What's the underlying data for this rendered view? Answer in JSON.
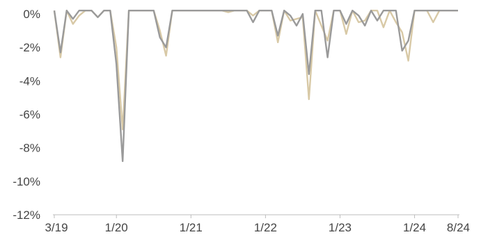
{
  "chart_data": {
    "type": "line",
    "title": "",
    "xlabel": "",
    "ylabel": "",
    "x_tick_labels": [
      "3/19",
      "1/20",
      "1/21",
      "1/22",
      "1/23",
      "1/24",
      "8/24"
    ],
    "x_tick_months": [
      0,
      10,
      22,
      34,
      46,
      58,
      65
    ],
    "y_ticks": [
      0,
      -2,
      -4,
      -6,
      -8,
      -10,
      -12
    ],
    "y_tick_labels": [
      "0%",
      "-2%",
      "-4%",
      "-6%",
      "-8%",
      "-10%",
      "-12%"
    ],
    "ylim": [
      -12,
      0
    ],
    "x_range_months": [
      0,
      65
    ],
    "grid": false,
    "legend": "none",
    "series": [
      {
        "color": "#d8c9a6",
        "points": [
          [
            0,
            0.2
          ],
          [
            1,
            -2.6
          ],
          [
            2,
            0.2
          ],
          [
            3,
            -0.6
          ],
          [
            4,
            -0.1
          ],
          [
            5,
            0.2
          ],
          [
            6,
            0.2
          ],
          [
            7,
            -0.2
          ],
          [
            8,
            0.2
          ],
          [
            9,
            0.2
          ],
          [
            10,
            -2.0
          ],
          [
            11,
            -6.9
          ],
          [
            12,
            0.2
          ],
          [
            13,
            0.2
          ],
          [
            14,
            0.2
          ],
          [
            15,
            0.2
          ],
          [
            16,
            0.2
          ],
          [
            17,
            -1.0
          ],
          [
            18,
            -2.5
          ],
          [
            19,
            0.2
          ],
          [
            20,
            0.2
          ],
          [
            21,
            0.2
          ],
          [
            22,
            0.2
          ],
          [
            23,
            0.2
          ],
          [
            24,
            0.2
          ],
          [
            25,
            0.2
          ],
          [
            26,
            0.2
          ],
          [
            27,
            0.2
          ],
          [
            28,
            0.1
          ],
          [
            29,
            0.2
          ],
          [
            30,
            0.2
          ],
          [
            31,
            0.2
          ],
          [
            32,
            -0.1
          ],
          [
            33,
            0.2
          ],
          [
            34,
            0.2
          ],
          [
            35,
            0.2
          ],
          [
            36,
            -1.7
          ],
          [
            37,
            0.2
          ],
          [
            38,
            -0.4
          ],
          [
            39,
            -0.3
          ],
          [
            40,
            -0.2
          ],
          [
            41,
            -5.1
          ],
          [
            42,
            0.2
          ],
          [
            43,
            -0.7
          ],
          [
            44,
            -1.6
          ],
          [
            45,
            0.2
          ],
          [
            46,
            0.2
          ],
          [
            47,
            -1.2
          ],
          [
            48,
            0.2
          ],
          [
            49,
            -0.5
          ],
          [
            50,
            -0.4
          ],
          [
            51,
            0.2
          ],
          [
            52,
            0.2
          ],
          [
            53,
            -0.8
          ],
          [
            54,
            0.2
          ],
          [
            55,
            -0.5
          ],
          [
            56,
            -1.1
          ],
          [
            57,
            -2.8
          ],
          [
            58,
            0.2
          ],
          [
            59,
            0.2
          ],
          [
            60,
            0.2
          ],
          [
            61,
            -0.5
          ],
          [
            62,
            0.2
          ],
          [
            63,
            0.2
          ],
          [
            64,
            0.2
          ],
          [
            65,
            0.2
          ]
        ]
      },
      {
        "color": "#9a9a9a",
        "points": [
          [
            0,
            0.2
          ],
          [
            1,
            -2.3
          ],
          [
            2,
            0.2
          ],
          [
            3,
            -0.3
          ],
          [
            4,
            0.2
          ],
          [
            5,
            0.2
          ],
          [
            6,
            0.2
          ],
          [
            7,
            -0.2
          ],
          [
            8,
            0.2
          ],
          [
            9,
            0.2
          ],
          [
            10,
            -3.0
          ],
          [
            11,
            -8.8
          ],
          [
            12,
            0.2
          ],
          [
            13,
            0.2
          ],
          [
            14,
            0.2
          ],
          [
            15,
            0.2
          ],
          [
            16,
            0.2
          ],
          [
            17,
            -1.4
          ],
          [
            18,
            -2.0
          ],
          [
            19,
            0.2
          ],
          [
            20,
            0.2
          ],
          [
            21,
            0.2
          ],
          [
            22,
            0.2
          ],
          [
            23,
            0.2
          ],
          [
            24,
            0.2
          ],
          [
            25,
            0.2
          ],
          [
            26,
            0.2
          ],
          [
            27,
            0.2
          ],
          [
            28,
            0.2
          ],
          [
            29,
            0.2
          ],
          [
            30,
            0.2
          ],
          [
            31,
            0.2
          ],
          [
            32,
            -0.5
          ],
          [
            33,
            0.2
          ],
          [
            34,
            0.2
          ],
          [
            35,
            0.2
          ],
          [
            36,
            -1.3
          ],
          [
            37,
            0.2
          ],
          [
            38,
            -0.1
          ],
          [
            39,
            -0.7
          ],
          [
            40,
            0.0
          ],
          [
            41,
            -3.6
          ],
          [
            42,
            0.2
          ],
          [
            43,
            0.2
          ],
          [
            44,
            -2.6
          ],
          [
            45,
            0.2
          ],
          [
            46,
            0.2
          ],
          [
            47,
            -0.6
          ],
          [
            48,
            0.2
          ],
          [
            49,
            -0.1
          ],
          [
            50,
            -0.7
          ],
          [
            51,
            0.2
          ],
          [
            52,
            -0.4
          ],
          [
            53,
            0.2
          ],
          [
            54,
            0.2
          ],
          [
            55,
            0.2
          ],
          [
            56,
            -2.2
          ],
          [
            57,
            -1.6
          ],
          [
            58,
            0.2
          ],
          [
            59,
            0.2
          ],
          [
            60,
            0.2
          ],
          [
            61,
            0.2
          ],
          [
            62,
            0.2
          ],
          [
            63,
            0.2
          ],
          [
            64,
            0.2
          ],
          [
            65,
            0.2
          ]
        ]
      }
    ]
  }
}
